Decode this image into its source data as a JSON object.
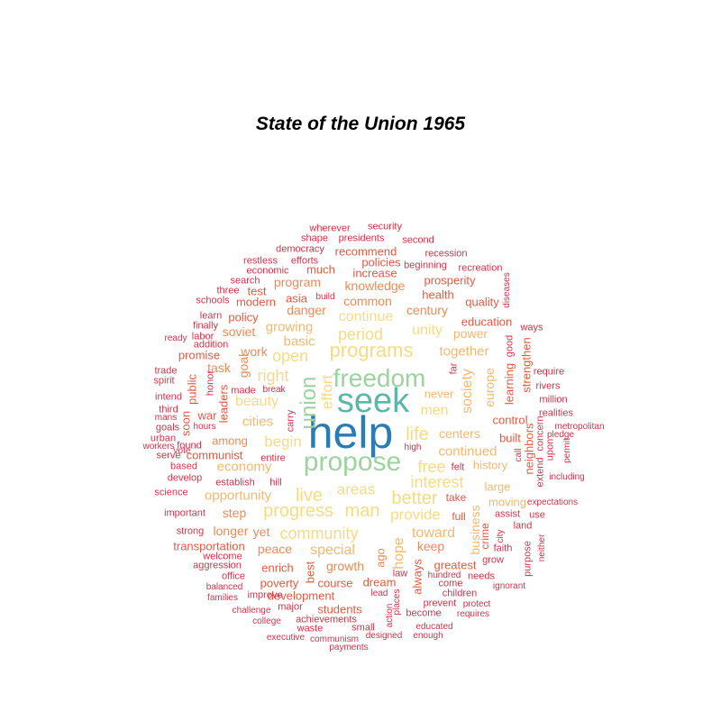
{
  "chart_data": {
    "type": "wordcloud",
    "title": "State of the Union 1965",
    "palette": [
      "#2B7BB4",
      "#5BB7A6",
      "#9DD39F",
      "#F6DB85",
      "#F4B86F",
      "#EC8B55",
      "#E35A41",
      "#D0344B"
    ],
    "words": [
      {
        "text": "help",
        "tier": 0
      },
      {
        "text": "seek",
        "tier": 1
      },
      {
        "text": "freedom",
        "tier": 2
      },
      {
        "text": "propose",
        "tier": 2
      },
      {
        "text": "union",
        "tier": 2
      },
      {
        "text": "life",
        "tier": 3
      },
      {
        "text": "programs",
        "tier": 3
      },
      {
        "text": "effort",
        "tier": 3
      },
      {
        "text": "progress",
        "tier": 3
      },
      {
        "text": "man",
        "tier": 3
      },
      {
        "text": "live",
        "tier": 3
      },
      {
        "text": "better",
        "tier": 3
      },
      {
        "text": "right",
        "tier": 3
      },
      {
        "text": "interest",
        "tier": 3
      },
      {
        "text": "free",
        "tier": 3
      },
      {
        "text": "period",
        "tier": 3
      },
      {
        "text": "open",
        "tier": 3
      },
      {
        "text": "men",
        "tier": 3
      },
      {
        "text": "begin",
        "tier": 3
      },
      {
        "text": "areas",
        "tier": 3
      },
      {
        "text": "community",
        "tier": 3
      },
      {
        "text": "provide",
        "tier": 3
      },
      {
        "text": "beauty",
        "tier": 3
      },
      {
        "text": "continue",
        "tier": 3
      },
      {
        "text": "unity",
        "tier": 3
      },
      {
        "text": "together",
        "tier": 4
      },
      {
        "text": "society",
        "tier": 4
      },
      {
        "text": "power",
        "tier": 4
      },
      {
        "text": "growing",
        "tier": 4
      },
      {
        "text": "basic",
        "tier": 4
      },
      {
        "text": "special",
        "tier": 4
      },
      {
        "text": "hope",
        "tier": 4
      },
      {
        "text": "toward",
        "tier": 4
      },
      {
        "text": "business",
        "tier": 4
      },
      {
        "text": "centers",
        "tier": 4
      },
      {
        "text": "continued",
        "tier": 4
      },
      {
        "text": "cities",
        "tier": 4
      },
      {
        "text": "opportunity",
        "tier": 4
      },
      {
        "text": "economy",
        "tier": 4
      },
      {
        "text": "europe",
        "tier": 4
      },
      {
        "text": "history",
        "tier": 4
      },
      {
        "text": "large",
        "tier": 4
      },
      {
        "text": "moving",
        "tier": 4
      },
      {
        "text": "never",
        "tier": 4
      },
      {
        "text": "work",
        "tier": 5
      },
      {
        "text": "among",
        "tier": 5
      },
      {
        "text": "task",
        "tier": 5
      },
      {
        "text": "goal",
        "tier": 5
      },
      {
        "text": "soviet",
        "tier": 5
      },
      {
        "text": "danger",
        "tier": 5
      },
      {
        "text": "common",
        "tier": 5
      },
      {
        "text": "century",
        "tier": 5
      },
      {
        "text": "knowledge",
        "tier": 5
      },
      {
        "text": "program",
        "tier": 5
      },
      {
        "text": "keep",
        "tier": 5
      },
      {
        "text": "growth",
        "tier": 5
      },
      {
        "text": "peace",
        "tier": 5
      },
      {
        "text": "yet",
        "tier": 5
      },
      {
        "text": "longer",
        "tier": 5
      },
      {
        "text": "step",
        "tier": 5
      },
      {
        "text": "ago",
        "tier": 5
      },
      {
        "text": "education",
        "tier": 6
      },
      {
        "text": "quality",
        "tier": 6
      },
      {
        "text": "health",
        "tier": 6
      },
      {
        "text": "prosperity",
        "tier": 6
      },
      {
        "text": "recommend",
        "tier": 6
      },
      {
        "text": "policies",
        "tier": 6
      },
      {
        "text": "increase",
        "tier": 6
      },
      {
        "text": "much",
        "tier": 6
      },
      {
        "text": "asia",
        "tier": 6
      },
      {
        "text": "modern",
        "tier": 6
      },
      {
        "text": "test",
        "tier": 6
      },
      {
        "text": "policy",
        "tier": 6
      },
      {
        "text": "promise",
        "tier": 6
      },
      {
        "text": "leaders",
        "tier": 6
      },
      {
        "text": "public",
        "tier": 6
      },
      {
        "text": "war",
        "tier": 6
      },
      {
        "text": "soon",
        "tier": 6
      },
      {
        "text": "communist",
        "tier": 6
      },
      {
        "text": "control",
        "tier": 6
      },
      {
        "text": "built",
        "tier": 6
      },
      {
        "text": "learning",
        "tier": 6
      },
      {
        "text": "strengthen",
        "tier": 6
      },
      {
        "text": "neighbors",
        "tier": 6
      },
      {
        "text": "transportation",
        "tier": 6
      },
      {
        "text": "enrich",
        "tier": 6
      },
      {
        "text": "poverty",
        "tier": 6
      },
      {
        "text": "development",
        "tier": 6
      },
      {
        "text": "course",
        "tier": 6
      },
      {
        "text": "dream",
        "tier": 6
      },
      {
        "text": "greatest",
        "tier": 6
      },
      {
        "text": "students",
        "tier": 6
      },
      {
        "text": "best",
        "tier": 6
      },
      {
        "text": "always",
        "tier": 6
      },
      {
        "text": "crime",
        "tier": 6
      },
      {
        "text": "full",
        "tier": 6
      },
      {
        "text": "take",
        "tier": 6
      },
      {
        "text": "wherever",
        "tier": 7
      },
      {
        "text": "security",
        "tier": 7
      },
      {
        "text": "shape",
        "tier": 7
      },
      {
        "text": "presidents",
        "tier": 7
      },
      {
        "text": "second",
        "tier": 7
      },
      {
        "text": "democracy",
        "tier": 7
      },
      {
        "text": "recession",
        "tier": 7
      },
      {
        "text": "restless",
        "tier": 7
      },
      {
        "text": "efforts",
        "tier": 7
      },
      {
        "text": "beginning",
        "tier": 7
      },
      {
        "text": "recreation",
        "tier": 7
      },
      {
        "text": "economic",
        "tier": 7
      },
      {
        "text": "search",
        "tier": 7
      },
      {
        "text": "three",
        "tier": 7
      },
      {
        "text": "schools",
        "tier": 7
      },
      {
        "text": "build",
        "tier": 7
      },
      {
        "text": "diseases",
        "tier": 7
      },
      {
        "text": "learn",
        "tier": 7
      },
      {
        "text": "finally",
        "tier": 7
      },
      {
        "text": "labor",
        "tier": 7
      },
      {
        "text": "ready",
        "tier": 7
      },
      {
        "text": "addition",
        "tier": 7
      },
      {
        "text": "ways",
        "tier": 7
      },
      {
        "text": "good",
        "tier": 7
      },
      {
        "text": "far",
        "tier": 7
      },
      {
        "text": "trade",
        "tier": 7
      },
      {
        "text": "spirit",
        "tier": 7
      },
      {
        "text": "honor",
        "tier": 7
      },
      {
        "text": "made",
        "tier": 7
      },
      {
        "text": "break",
        "tier": 7
      },
      {
        "text": "require",
        "tier": 7
      },
      {
        "text": "rivers",
        "tier": 7
      },
      {
        "text": "million",
        "tier": 7
      },
      {
        "text": "intend",
        "tier": 7
      },
      {
        "text": "third",
        "tier": 7
      },
      {
        "text": "mans",
        "tier": 7
      },
      {
        "text": "goals",
        "tier": 7
      },
      {
        "text": "hours",
        "tier": 7
      },
      {
        "text": "carry",
        "tier": 7
      },
      {
        "text": "realities",
        "tier": 7
      },
      {
        "text": "metropolitan",
        "tier": 7
      },
      {
        "text": "pledge",
        "tier": 7
      },
      {
        "text": "urban",
        "tier": 7
      },
      {
        "text": "vote",
        "tier": 7
      },
      {
        "text": "workers",
        "tier": 7
      },
      {
        "text": "found",
        "tier": 7
      },
      {
        "text": "high",
        "tier": 7
      },
      {
        "text": "call",
        "tier": 7
      },
      {
        "text": "concern",
        "tier": 7
      },
      {
        "text": "upon",
        "tier": 7
      },
      {
        "text": "permit",
        "tier": 7
      },
      {
        "text": "extend",
        "tier": 7
      },
      {
        "text": "including",
        "tier": 7
      },
      {
        "text": "serve",
        "tier": 7
      },
      {
        "text": "entire",
        "tier": 7
      },
      {
        "text": "based",
        "tier": 7
      },
      {
        "text": "felt",
        "tier": 7
      },
      {
        "text": "assist",
        "tier": 7
      },
      {
        "text": "develop",
        "tier": 7
      },
      {
        "text": "establish",
        "tier": 7
      },
      {
        "text": "hill",
        "tier": 7
      },
      {
        "text": "expectations",
        "tier": 7
      },
      {
        "text": "science",
        "tier": 7
      },
      {
        "text": "important",
        "tier": 7
      },
      {
        "text": "use",
        "tier": 7
      },
      {
        "text": "city",
        "tier": 7
      },
      {
        "text": "land",
        "tier": 7
      },
      {
        "text": "strong",
        "tier": 7
      },
      {
        "text": "faith",
        "tier": 7
      },
      {
        "text": "welcome",
        "tier": 7
      },
      {
        "text": "purpose",
        "tier": 7
      },
      {
        "text": "neither",
        "tier": 7
      },
      {
        "text": "aggression",
        "tier": 7
      },
      {
        "text": "grow",
        "tier": 7
      },
      {
        "text": "office",
        "tier": 7
      },
      {
        "text": "law",
        "tier": 7
      },
      {
        "text": "hundred",
        "tier": 7
      },
      {
        "text": "needs",
        "tier": 7
      },
      {
        "text": "ignorant",
        "tier": 7
      },
      {
        "text": "balanced",
        "tier": 7
      },
      {
        "text": "come",
        "tier": 7
      },
      {
        "text": "families",
        "tier": 7
      },
      {
        "text": "improve",
        "tier": 7
      },
      {
        "text": "lead",
        "tier": 7
      },
      {
        "text": "children",
        "tier": 7
      },
      {
        "text": "challenge",
        "tier": 7
      },
      {
        "text": "major",
        "tier": 7
      },
      {
        "text": "places",
        "tier": 7
      },
      {
        "text": "prevent",
        "tier": 7
      },
      {
        "text": "protect",
        "tier": 7
      },
      {
        "text": "college",
        "tier": 7
      },
      {
        "text": "achievements",
        "tier": 7
      },
      {
        "text": "action",
        "tier": 7
      },
      {
        "text": "become",
        "tier": 7
      },
      {
        "text": "requires",
        "tier": 7
      },
      {
        "text": "waste",
        "tier": 7
      },
      {
        "text": "small",
        "tier": 7
      },
      {
        "text": "educated",
        "tier": 7
      },
      {
        "text": "executive",
        "tier": 7
      },
      {
        "text": "communism",
        "tier": 7
      },
      {
        "text": "designed",
        "tier": 7
      },
      {
        "text": "enough",
        "tier": 7
      },
      {
        "text": "payments",
        "tier": 7
      }
    ]
  }
}
